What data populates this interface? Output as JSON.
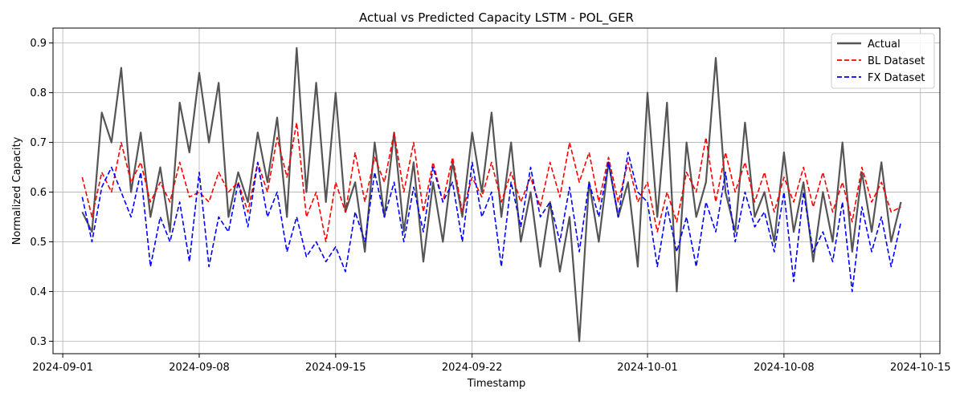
{
  "chart_data": {
    "type": "line",
    "title": "Actual vs Predicted Capacity LSTM - POL_GER",
    "xlabel": "Timestamp",
    "ylabel": "Normalized Capacity",
    "xlim": [
      "2024-08-31T12:00",
      "2024-10-16T00:00"
    ],
    "ylim": [
      0.275,
      0.93
    ],
    "x_ticks": [
      "2024-09-01",
      "2024-09-08",
      "2024-09-15",
      "2024-09-22",
      "2024-10-01",
      "2024-10-08",
      "2024-10-15"
    ],
    "y_ticks": [
      0.3,
      0.4,
      0.5,
      0.6,
      0.7,
      0.8,
      0.9
    ],
    "y_tick_labels": [
      "0.3",
      "0.4",
      "0.5",
      "0.6",
      "0.7",
      "0.8",
      "0.9"
    ],
    "grid": true,
    "legend": "top-right",
    "series": [
      {
        "name": "Actual",
        "color": "#555555",
        "style": "solid",
        "x": [
          "2024-09-02T00:00",
          "2024-09-02T12:00",
          "2024-09-03T00:00",
          "2024-09-03T12:00",
          "2024-09-04T00:00",
          "2024-09-04T12:00",
          "2024-09-05T00:00",
          "2024-09-05T12:00",
          "2024-09-06T00:00",
          "2024-09-06T12:00",
          "2024-09-07T00:00",
          "2024-09-07T12:00",
          "2024-09-08T00:00",
          "2024-09-08T12:00",
          "2024-09-09T00:00",
          "2024-09-09T12:00",
          "2024-09-10T00:00",
          "2024-09-10T12:00",
          "2024-09-11T00:00",
          "2024-09-11T12:00",
          "2024-09-12T00:00",
          "2024-09-12T12:00",
          "2024-09-13T00:00",
          "2024-09-13T12:00",
          "2024-09-14T00:00",
          "2024-09-14T12:00",
          "2024-09-15T00:00",
          "2024-09-15T12:00",
          "2024-09-16T00:00",
          "2024-09-16T12:00",
          "2024-09-17T00:00",
          "2024-09-17T12:00",
          "2024-09-18T00:00",
          "2024-09-18T12:00",
          "2024-09-19T00:00",
          "2024-09-19T12:00",
          "2024-09-20T00:00",
          "2024-09-20T12:00",
          "2024-09-21T00:00",
          "2024-09-21T12:00",
          "2024-09-22T00:00",
          "2024-09-22T12:00",
          "2024-09-23T00:00",
          "2024-09-23T12:00",
          "2024-09-24T00:00",
          "2024-09-24T12:00",
          "2024-09-25T00:00",
          "2024-09-25T12:00",
          "2024-09-26T00:00",
          "2024-09-26T12:00",
          "2024-09-27T00:00",
          "2024-09-27T12:00",
          "2024-09-28T00:00",
          "2024-09-28T12:00",
          "2024-09-29T00:00",
          "2024-09-29T12:00",
          "2024-09-30T00:00",
          "2024-09-30T12:00",
          "2024-10-01T00:00",
          "2024-10-01T12:00",
          "2024-10-02T00:00",
          "2024-10-02T12:00",
          "2024-10-03T00:00",
          "2024-10-03T12:00",
          "2024-10-04T00:00",
          "2024-10-04T12:00",
          "2024-10-05T00:00",
          "2024-10-05T12:00",
          "2024-10-06T00:00",
          "2024-10-06T12:00",
          "2024-10-07T00:00",
          "2024-10-07T12:00",
          "2024-10-08T00:00",
          "2024-10-08T12:00",
          "2024-10-09T00:00",
          "2024-10-09T12:00",
          "2024-10-10T00:00",
          "2024-10-10T12:00",
          "2024-10-11T00:00",
          "2024-10-11T12:00",
          "2024-10-12T00:00",
          "2024-10-12T12:00",
          "2024-10-13T00:00",
          "2024-10-13T12:00",
          "2024-10-14T00:00"
        ],
        "values": [
          0.56,
          0.52,
          0.76,
          0.7,
          0.85,
          0.6,
          0.72,
          0.55,
          0.65,
          0.52,
          0.78,
          0.68,
          0.84,
          0.7,
          0.82,
          0.55,
          0.64,
          0.58,
          0.72,
          0.62,
          0.75,
          0.55,
          0.89,
          0.6,
          0.82,
          0.58,
          0.8,
          0.56,
          0.62,
          0.48,
          0.7,
          0.55,
          0.72,
          0.52,
          0.66,
          0.46,
          0.62,
          0.5,
          0.66,
          0.55,
          0.72,
          0.6,
          0.76,
          0.55,
          0.7,
          0.5,
          0.6,
          0.45,
          0.58,
          0.44,
          0.55,
          0.3,
          0.62,
          0.5,
          0.66,
          0.55,
          0.62,
          0.45,
          0.8,
          0.55,
          0.78,
          0.4,
          0.7,
          0.55,
          0.62,
          0.87,
          0.6,
          0.52,
          0.74,
          0.55,
          0.6,
          0.5,
          0.68,
          0.52,
          0.62,
          0.46,
          0.6,
          0.5,
          0.7,
          0.48,
          0.64,
          0.52,
          0.66,
          0.5,
          0.58
        ]
      },
      {
        "name": "BL Dataset",
        "color": "#ff0000",
        "style": "dashed",
        "x": [
          "2024-09-02T00:00",
          "2024-09-02T12:00",
          "2024-09-03T00:00",
          "2024-09-03T12:00",
          "2024-09-04T00:00",
          "2024-09-04T12:00",
          "2024-09-05T00:00",
          "2024-09-05T12:00",
          "2024-09-06T00:00",
          "2024-09-06T12:00",
          "2024-09-07T00:00",
          "2024-09-07T12:00",
          "2024-09-08T00:00",
          "2024-09-08T12:00",
          "2024-09-09T00:00",
          "2024-09-09T12:00",
          "2024-09-10T00:00",
          "2024-09-10T12:00",
          "2024-09-11T00:00",
          "2024-09-11T12:00",
          "2024-09-12T00:00",
          "2024-09-12T12:00",
          "2024-09-13T00:00",
          "2024-09-13T12:00",
          "2024-09-14T00:00",
          "2024-09-14T12:00",
          "2024-09-15T00:00",
          "2024-09-15T12:00",
          "2024-09-16T00:00",
          "2024-09-16T12:00",
          "2024-09-17T00:00",
          "2024-09-17T12:00",
          "2024-09-18T00:00",
          "2024-09-18T12:00",
          "2024-09-19T00:00",
          "2024-09-19T12:00",
          "2024-09-20T00:00",
          "2024-09-20T12:00",
          "2024-09-21T00:00",
          "2024-09-21T12:00",
          "2024-09-22T00:00",
          "2024-09-22T12:00",
          "2024-09-23T00:00",
          "2024-09-23T12:00",
          "2024-09-24T00:00",
          "2024-09-24T12:00",
          "2024-09-25T00:00",
          "2024-09-25T12:00",
          "2024-09-26T00:00",
          "2024-09-26T12:00",
          "2024-09-27T00:00",
          "2024-09-27T12:00",
          "2024-09-28T00:00",
          "2024-09-28T12:00",
          "2024-09-29T00:00",
          "2024-09-29T12:00",
          "2024-09-30T00:00",
          "2024-09-30T12:00",
          "2024-10-01T00:00",
          "2024-10-01T12:00",
          "2024-10-02T00:00",
          "2024-10-02T12:00",
          "2024-10-03T00:00",
          "2024-10-03T12:00",
          "2024-10-04T00:00",
          "2024-10-04T12:00",
          "2024-10-05T00:00",
          "2024-10-05T12:00",
          "2024-10-06T00:00",
          "2024-10-06T12:00",
          "2024-10-07T00:00",
          "2024-10-07T12:00",
          "2024-10-08T00:00",
          "2024-10-08T12:00",
          "2024-10-09T00:00",
          "2024-10-09T12:00",
          "2024-10-10T00:00",
          "2024-10-10T12:00",
          "2024-10-11T00:00",
          "2024-10-11T12:00",
          "2024-10-12T00:00",
          "2024-10-12T12:00",
          "2024-10-13T00:00",
          "2024-10-13T12:00",
          "2024-10-14T00:00"
        ],
        "values": [
          0.63,
          0.55,
          0.64,
          0.6,
          0.7,
          0.62,
          0.66,
          0.58,
          0.62,
          0.58,
          0.66,
          0.59,
          0.6,
          0.58,
          0.64,
          0.6,
          0.62,
          0.56,
          0.66,
          0.6,
          0.71,
          0.63,
          0.74,
          0.55,
          0.6,
          0.5,
          0.62,
          0.56,
          0.68,
          0.58,
          0.67,
          0.62,
          0.72,
          0.6,
          0.7,
          0.56,
          0.66,
          0.58,
          0.67,
          0.56,
          0.63,
          0.59,
          0.66,
          0.58,
          0.64,
          0.58,
          0.63,
          0.57,
          0.66,
          0.59,
          0.7,
          0.62,
          0.68,
          0.58,
          0.67,
          0.58,
          0.66,
          0.58,
          0.62,
          0.52,
          0.6,
          0.54,
          0.64,
          0.6,
          0.71,
          0.58,
          0.68,
          0.6,
          0.66,
          0.58,
          0.64,
          0.56,
          0.63,
          0.58,
          0.65,
          0.57,
          0.64,
          0.56,
          0.62,
          0.54,
          0.65,
          0.58,
          0.62,
          0.56,
          0.57
        ]
      },
      {
        "name": "FX Dataset",
        "color": "#0000ff",
        "style": "dashed",
        "x": [
          "2024-09-02T00:00",
          "2024-09-02T12:00",
          "2024-09-03T00:00",
          "2024-09-03T12:00",
          "2024-09-04T00:00",
          "2024-09-04T12:00",
          "2024-09-05T00:00",
          "2024-09-05T12:00",
          "2024-09-06T00:00",
          "2024-09-06T12:00",
          "2024-09-07T00:00",
          "2024-09-07T12:00",
          "2024-09-08T00:00",
          "2024-09-08T12:00",
          "2024-09-09T00:00",
          "2024-09-09T12:00",
          "2024-09-10T00:00",
          "2024-09-10T12:00",
          "2024-09-11T00:00",
          "2024-09-11T12:00",
          "2024-09-12T00:00",
          "2024-09-12T12:00",
          "2024-09-13T00:00",
          "2024-09-13T12:00",
          "2024-09-14T00:00",
          "2024-09-14T12:00",
          "2024-09-15T00:00",
          "2024-09-15T12:00",
          "2024-09-16T00:00",
          "2024-09-16T12:00",
          "2024-09-17T00:00",
          "2024-09-17T12:00",
          "2024-09-18T00:00",
          "2024-09-18T12:00",
          "2024-09-19T00:00",
          "2024-09-19T12:00",
          "2024-09-20T00:00",
          "2024-09-20T12:00",
          "2024-09-21T00:00",
          "2024-09-21T12:00",
          "2024-09-22T00:00",
          "2024-09-22T12:00",
          "2024-09-23T00:00",
          "2024-09-23T12:00",
          "2024-09-24T00:00",
          "2024-09-24T12:00",
          "2024-09-25T00:00",
          "2024-09-25T12:00",
          "2024-09-26T00:00",
          "2024-09-26T12:00",
          "2024-09-27T00:00",
          "2024-09-27T12:00",
          "2024-09-28T00:00",
          "2024-09-28T12:00",
          "2024-09-29T00:00",
          "2024-09-29T12:00",
          "2024-09-30T00:00",
          "2024-09-30T12:00",
          "2024-10-01T00:00",
          "2024-10-01T12:00",
          "2024-10-02T00:00",
          "2024-10-02T12:00",
          "2024-10-03T00:00",
          "2024-10-03T12:00",
          "2024-10-04T00:00",
          "2024-10-04T12:00",
          "2024-10-05T00:00",
          "2024-10-05T12:00",
          "2024-10-06T00:00",
          "2024-10-06T12:00",
          "2024-10-07T00:00",
          "2024-10-07T12:00",
          "2024-10-08T00:00",
          "2024-10-08T12:00",
          "2024-10-09T00:00",
          "2024-10-09T12:00",
          "2024-10-10T00:00",
          "2024-10-10T12:00",
          "2024-10-11T00:00",
          "2024-10-11T12:00",
          "2024-10-12T00:00",
          "2024-10-12T12:00",
          "2024-10-13T00:00",
          "2024-10-13T12:00",
          "2024-10-14T00:00"
        ],
        "values": [
          0.59,
          0.5,
          0.61,
          0.65,
          0.6,
          0.55,
          0.64,
          0.45,
          0.55,
          0.5,
          0.58,
          0.46,
          0.64,
          0.45,
          0.55,
          0.52,
          0.62,
          0.53,
          0.66,
          0.55,
          0.6,
          0.48,
          0.55,
          0.47,
          0.5,
          0.46,
          0.49,
          0.44,
          0.56,
          0.5,
          0.64,
          0.55,
          0.62,
          0.5,
          0.61,
          0.52,
          0.65,
          0.58,
          0.62,
          0.5,
          0.66,
          0.55,
          0.6,
          0.45,
          0.62,
          0.53,
          0.65,
          0.55,
          0.58,
          0.5,
          0.61,
          0.48,
          0.62,
          0.55,
          0.66,
          0.55,
          0.68,
          0.6,
          0.58,
          0.45,
          0.57,
          0.48,
          0.55,
          0.45,
          0.58,
          0.52,
          0.64,
          0.5,
          0.6,
          0.53,
          0.56,
          0.48,
          0.6,
          0.42,
          0.6,
          0.48,
          0.52,
          0.46,
          0.58,
          0.4,
          0.57,
          0.48,
          0.55,
          0.45,
          0.54
        ]
      }
    ]
  }
}
